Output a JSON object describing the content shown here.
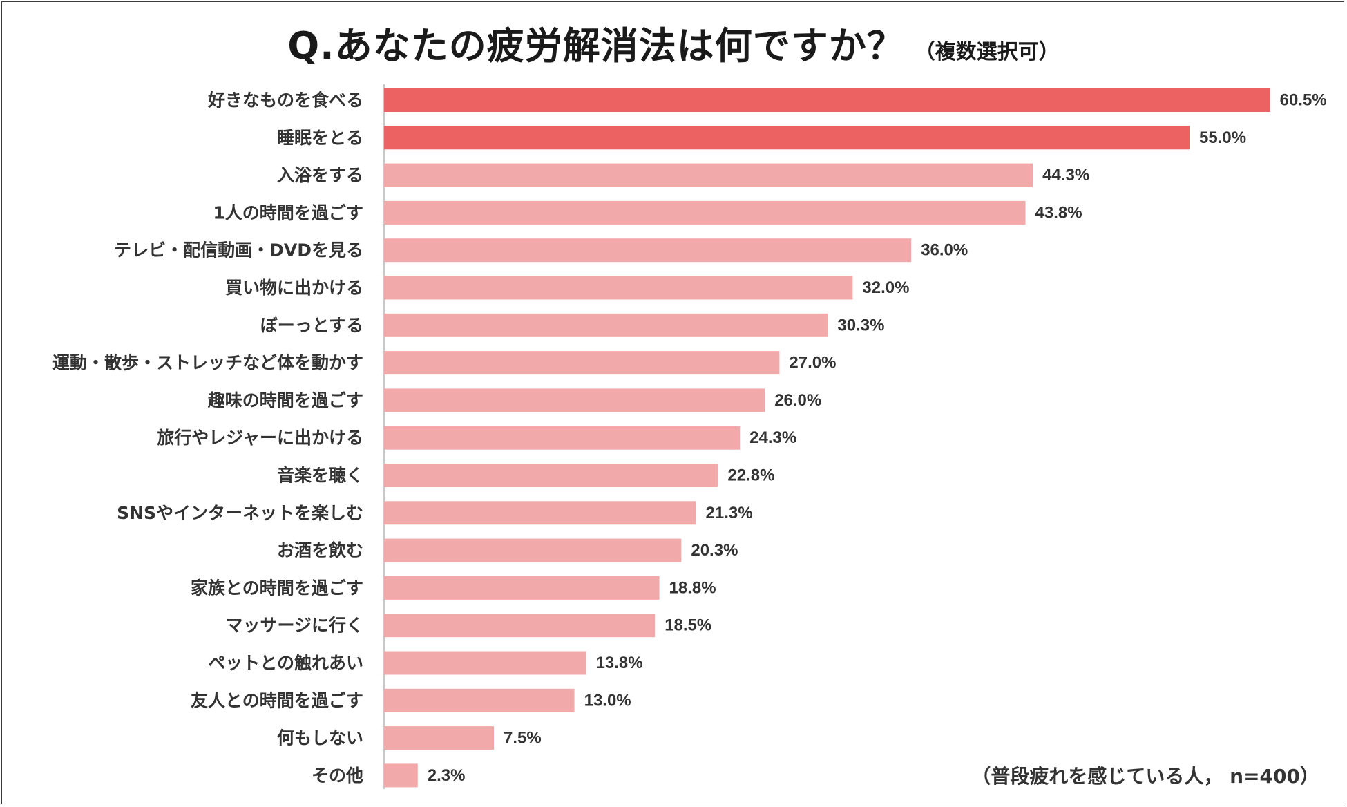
{
  "title": {
    "main": "Q.あなたの疲労解消法は何ですか？",
    "sub": "（複数選択可）"
  },
  "note": "（普段疲れを感じている人， n=400）",
  "colors": {
    "highlight": "#ec6161",
    "normal": "#f2a9aa",
    "axis": "#c8c8c8",
    "text": "#333333"
  },
  "chart_data": {
    "type": "bar",
    "orientation": "horizontal",
    "title": "Q.あなたの疲労解消法は何ですか？（複数選択可）",
    "xlabel": "",
    "ylabel": "",
    "unit": "%",
    "xlim": [
      0,
      65
    ],
    "highlight_top": 2,
    "categories": [
      "好きなものを食べる",
      "睡眠をとる",
      "入浴をする",
      "1人の時間を過ごす",
      "テレビ・配信動画・DVDを見る",
      "買い物に出かける",
      "ぼーっとする",
      "運動・散歩・ストレッチなど体を動かす",
      "趣味の時間を過ごす",
      "旅行やレジャーに出かける",
      "音楽を聴く",
      "SNSやインターネットを楽しむ",
      "お酒を飲む",
      "家族との時間を過ごす",
      "マッサージに行く",
      "ペットとの触れあい",
      "友人との時間を過ごす",
      "何もしない",
      "その他"
    ],
    "values": [
      60.5,
      55.0,
      44.3,
      43.8,
      36.0,
      32.0,
      30.3,
      27.0,
      26.0,
      24.3,
      22.8,
      21.3,
      20.3,
      18.8,
      18.5,
      13.8,
      13.0,
      7.5,
      2.3
    ],
    "value_labels": [
      "60.5%",
      "55.0%",
      "44.3%",
      "43.8%",
      "36.0%",
      "32.0%",
      "30.3%",
      "27.0%",
      "26.0%",
      "24.3%",
      "22.8%",
      "21.3%",
      "20.3%",
      "18.8%",
      "18.5%",
      "13.8%",
      "13.0%",
      "7.5%",
      "2.3%"
    ]
  }
}
